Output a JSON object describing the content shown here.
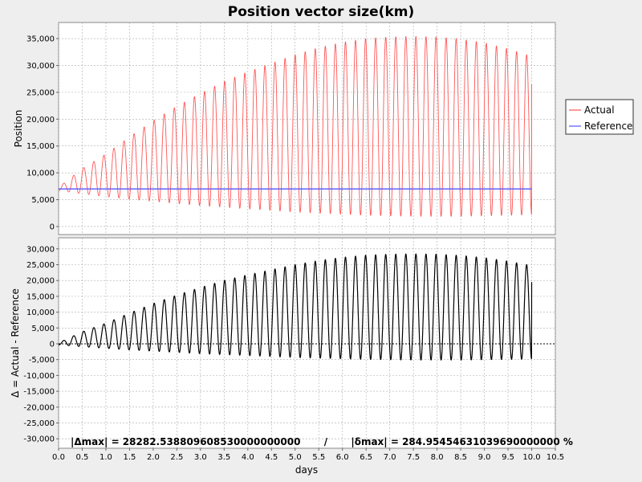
{
  "chart_data": {
    "type": "line",
    "title": "Position vector size(km)",
    "xlabel": "days",
    "xlim": [
      0,
      10.5
    ],
    "xticks": [
      0,
      0.5,
      1,
      1.5,
      2,
      2.5,
      3,
      3.5,
      4,
      4.5,
      5,
      5.5,
      6,
      6.5,
      7,
      7.5,
      8,
      8.5,
      9,
      9.5,
      10,
      10.5
    ],
    "xtick_labels": [
      "0.0",
      "0.5",
      "1.0",
      "1.5",
      "2.0",
      "2.5",
      "3.0",
      "3.5",
      "4.0",
      "4.5",
      "5.0",
      "5.5",
      "6.0",
      "6.5",
      "7.0",
      "7.5",
      "8.0",
      "8.5",
      "9.0",
      "9.5",
      "10.0",
      "10.5"
    ],
    "grid": true,
    "legend": "right",
    "colors": {
      "actual": "#ff5555",
      "reference": "#5555ff",
      "delta": "#000000"
    },
    "top_panel": {
      "ylabel": "Position",
      "ylim": [
        -1500,
        38000
      ],
      "yticks": [
        0,
        5000,
        10000,
        15000,
        20000,
        25000,
        30000,
        35000
      ],
      "ytick_labels": [
        "0",
        "5,000",
        "10,000",
        "15,000",
        "20,000",
        "25,000",
        "30,000",
        "35,000"
      ],
      "series": [
        {
          "name": "Actual",
          "envelope_x": [
            0,
            0.5,
            1,
            1.5,
            2,
            2.5,
            3,
            3.5,
            4,
            4.5,
            5,
            5.5,
            6,
            6.5,
            7,
            7.5,
            8,
            8.5,
            9,
            9.5,
            10
          ],
          "max_y": [
            7300,
            10800,
            13500,
            16700,
            19700,
            22400,
            24800,
            27000,
            28800,
            30400,
            32000,
            33300,
            34300,
            35000,
            35300,
            35400,
            35300,
            34900,
            34200,
            33100,
            31700
          ],
          "min_y": [
            6700,
            6100,
            5600,
            5100,
            4700,
            4300,
            3900,
            3600,
            3300,
            3000,
            2700,
            2500,
            2300,
            2100,
            2000,
            1900,
            1900,
            1900,
            2000,
            2100,
            2200
          ],
          "end_y": 26500,
          "orbits": 47
        },
        {
          "name": "Reference",
          "x": [
            0,
            10
          ],
          "y": [
            7000,
            7000
          ]
        }
      ]
    },
    "bottom_panel": {
      "ylabel": "Δ = Actual - Reference",
      "ylim": [
        -33000,
        33500
      ],
      "yticks": [
        -30000,
        -25000,
        -20000,
        -15000,
        -10000,
        -5000,
        0,
        5000,
        10000,
        15000,
        20000,
        25000,
        30000
      ],
      "ytick_labels": [
        "-30,000",
        "-25,000",
        "-20,000",
        "-15,000",
        "-10,000",
        "-5,000",
        "0",
        "5,000",
        "10,000",
        "15,000",
        "20,000",
        "25,000",
        "30,000"
      ],
      "series": [
        {
          "name": "Δ",
          "envelope_x": [
            0,
            0.5,
            1,
            1.5,
            2,
            2.5,
            3,
            3.5,
            4,
            4.5,
            5,
            5.5,
            6,
            6.5,
            7,
            7.5,
            8,
            8.5,
            9,
            9.5,
            10
          ],
          "max_y": [
            300,
            3800,
            6500,
            9700,
            12700,
            15400,
            17800,
            20000,
            21800,
            23400,
            25000,
            26300,
            27300,
            28000,
            28300,
            28400,
            28300,
            27900,
            27200,
            26100,
            24700
          ],
          "min_y": [
            -300,
            -900,
            -1400,
            -1900,
            -2300,
            -2700,
            -3100,
            -3400,
            -3700,
            -4000,
            -4300,
            -4500,
            -4700,
            -4900,
            -5000,
            -5100,
            -5100,
            -5100,
            -5000,
            -4900,
            -4800
          ],
          "end_y": 19500,
          "orbits": 47
        }
      ],
      "annotation": "|Δmax| = 28282.538809608530000000000       /       |δmax| = 284.95454631039690000000 %"
    }
  }
}
